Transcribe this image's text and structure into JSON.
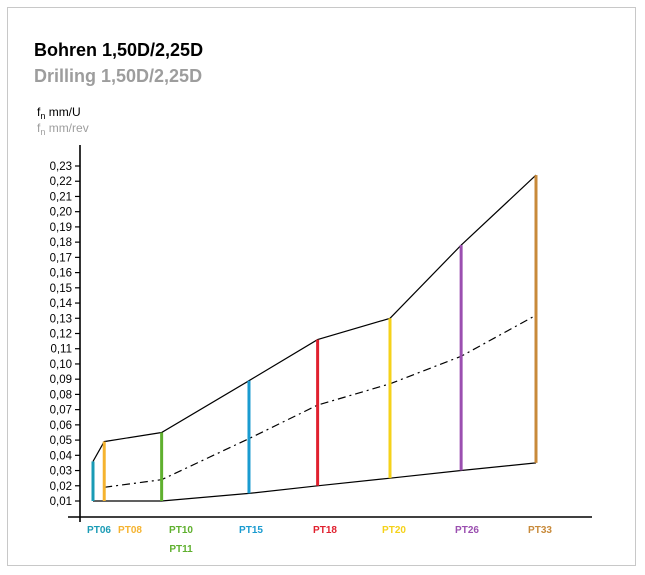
{
  "title": "Bohren 1,50D/2,25D",
  "subtitle": "Drilling 1,50D/2,25D",
  "ylabel": {
    "f_prefix": "f",
    "f_sub": "n",
    "de_unit": " mm/U",
    "en_unit": " mm/rev"
  },
  "colors": {
    "title": "#000000",
    "subtitle": "#9d9d9d"
  },
  "chart_data": {
    "type": "line",
    "y_tick_labels": [
      "0,01",
      "0,02",
      "0,03",
      "0,04",
      "0,05",
      "0,06",
      "0,07",
      "0,08",
      "0,09",
      "0,10",
      "0,11",
      "0,12",
      "0,13",
      "0,14",
      "0,15",
      "0,16",
      "0,17",
      "0,18",
      "0,19",
      "0,20",
      "0,21",
      "0,22",
      "0,23"
    ],
    "ylim": [
      0.0,
      0.235
    ],
    "series": [
      {
        "style": "solid",
        "x": [
          1.0,
          1.9,
          6.5,
          13.5,
          19.0,
          24.8,
          30.5,
          36.5
        ],
        "y": [
          0.036,
          0.049,
          0.055,
          0.089,
          0.116,
          0.13,
          0.178,
          0.224
        ]
      },
      {
        "style": "dash-dot",
        "x": [
          1.9,
          6.5,
          13.5,
          19.0,
          24.8,
          30.5,
          36.5
        ],
        "y": [
          0.019,
          0.024,
          0.051,
          0.073,
          0.087,
          0.105,
          0.132
        ]
      },
      {
        "style": "solid",
        "x": [
          1.0,
          6.5,
          13.5,
          19.0,
          24.8,
          30.5,
          36.5
        ],
        "y": [
          0.01,
          0.01,
          0.015,
          0.02,
          0.025,
          0.03,
          0.035
        ]
      }
    ],
    "bars": [
      {
        "label": "PT06",
        "x": 1.0,
        "low": 0.01,
        "high": 0.036,
        "color": "#1a9bb5"
      },
      {
        "label": "PT08",
        "x": 1.9,
        "low": 0.01,
        "high": 0.049,
        "color": "#f5b32f"
      },
      {
        "label": "PT10",
        "x": 6.5,
        "low": 0.01,
        "high": 0.055,
        "color": "#5fb02e"
      },
      {
        "label": "PT15",
        "x": 13.5,
        "low": 0.015,
        "high": 0.089,
        "color": "#1a9bd0"
      },
      {
        "label": "PT18",
        "x": 19.0,
        "low": 0.02,
        "high": 0.116,
        "color": "#e0202e"
      },
      {
        "label": "PT20",
        "x": 24.8,
        "low": 0.025,
        "high": 0.13,
        "color": "#f5d21a"
      },
      {
        "label": "PT26",
        "x": 30.5,
        "low": 0.03,
        "high": 0.178,
        "color": "#9b4fb0"
      },
      {
        "label": "PT33",
        "x": 36.5,
        "low": 0.035,
        "high": 0.224,
        "color": "#c88a3a"
      }
    ],
    "x_tick_labels": [
      {
        "text": "PT06",
        "color": "#1a9bb5"
      },
      {
        "text": "PT08",
        "color": "#f5b32f"
      },
      {
        "text": "PT10",
        "color": "#5fb02e"
      },
      {
        "text": "PT11",
        "color": "#5fb02e"
      },
      {
        "text": "PT15",
        "color": "#1a9bd0"
      },
      {
        "text": "PT18",
        "color": "#e0202e"
      },
      {
        "text": "PT20",
        "color": "#f5d21a"
      },
      {
        "text": "PT26",
        "color": "#9b4fb0"
      },
      {
        "text": "PT33",
        "color": "#c88a3a"
      }
    ],
    "grid": false
  }
}
